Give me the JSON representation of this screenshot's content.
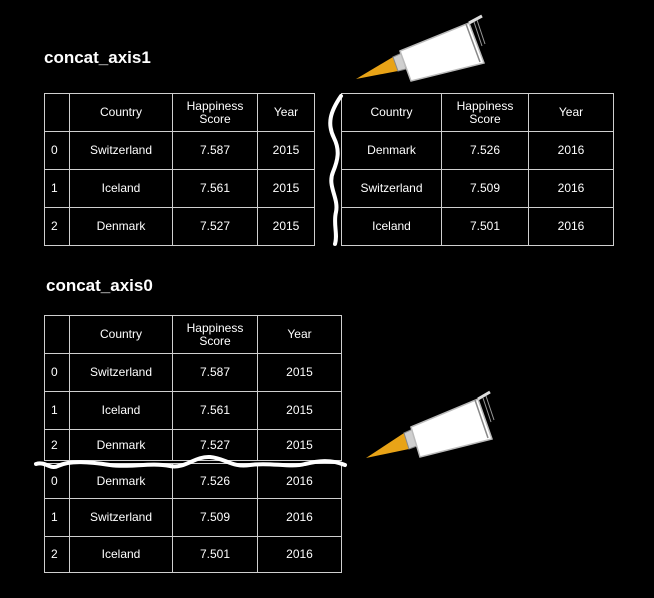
{
  "headings": {
    "concat_axis1": "concat_axis1",
    "concat_axis0": "concat_axis0"
  },
  "columns": [
    "Country",
    "Happiness Score",
    "Year"
  ],
  "df2015": [
    {
      "index": "0",
      "country": "Switzerland",
      "score": "7.587",
      "year": "2015"
    },
    {
      "index": "1",
      "country": "Iceland",
      "score": "7.561",
      "year": "2015"
    },
    {
      "index": "2",
      "country": "Denmark",
      "score": "7.527",
      "year": "2015"
    }
  ],
  "df2016": [
    {
      "index": "0",
      "country": "Denmark",
      "score": "7.526",
      "year": "2016"
    },
    {
      "index": "1",
      "country": "Switzerland",
      "score": "7.509",
      "year": "2016"
    },
    {
      "index": "2",
      "country": "Iceland",
      "score": "7.501",
      "year": "2016"
    }
  ],
  "icons": [
    "glue-tube-icon",
    "tear-line-icon"
  ],
  "colors": {
    "background": "#000000",
    "text": "#ffffff",
    "grid": "#cfcfcf",
    "glue_tip": "#e8a317"
  }
}
